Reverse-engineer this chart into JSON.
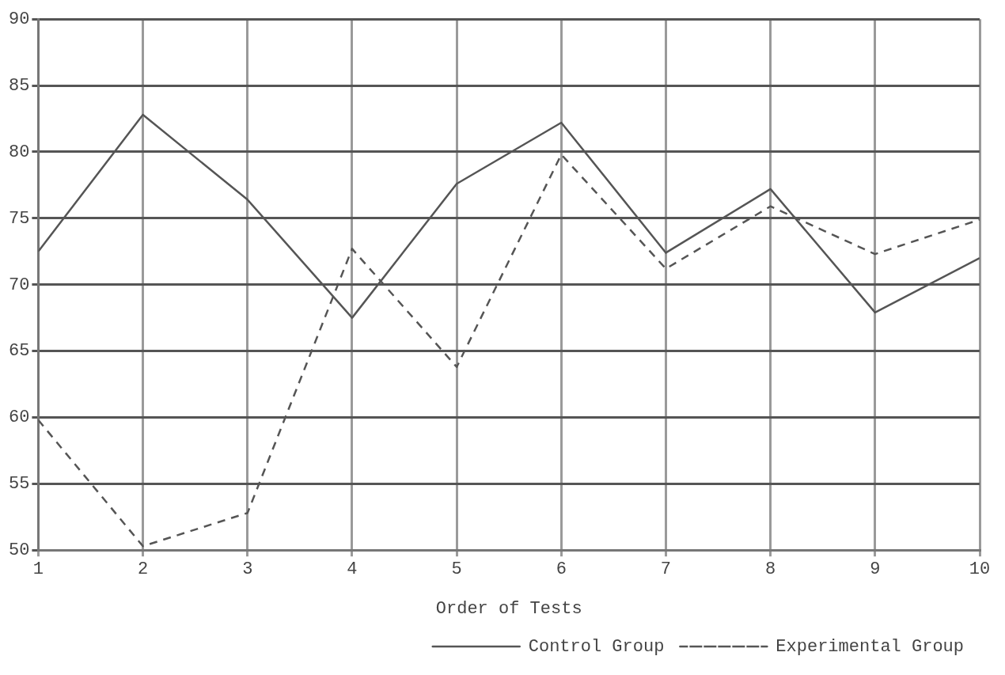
{
  "chart_data": {
    "type": "line",
    "xlabel": "Order of Tests",
    "x": [
      1,
      2,
      3,
      4,
      5,
      6,
      7,
      8,
      9,
      10
    ],
    "series": [
      {
        "name": "Control Group",
        "color": "#555555",
        "line_style": "solid",
        "values": [
          72.5,
          82.8,
          76.4,
          67.5,
          77.6,
          82.2,
          72.4,
          77.2,
          67.9,
          72.0
        ]
      },
      {
        "name": "Experimental Group",
        "color": "#555555",
        "line_style": "dashed",
        "values": [
          59.8,
          50.3,
          52.8,
          72.7,
          63.8,
          79.8,
          71.2,
          75.9,
          72.3,
          74.9
        ]
      }
    ],
    "xlim": [
      1,
      10
    ],
    "xticks": [
      1,
      2,
      3,
      4,
      5,
      6,
      7,
      8,
      9,
      10
    ],
    "ylim": [
      50,
      90
    ],
    "yticks": [
      50,
      55,
      60,
      65,
      70,
      75,
      80,
      85,
      90
    ],
    "grid": true,
    "legend": "bottom right",
    "marker": "none"
  }
}
